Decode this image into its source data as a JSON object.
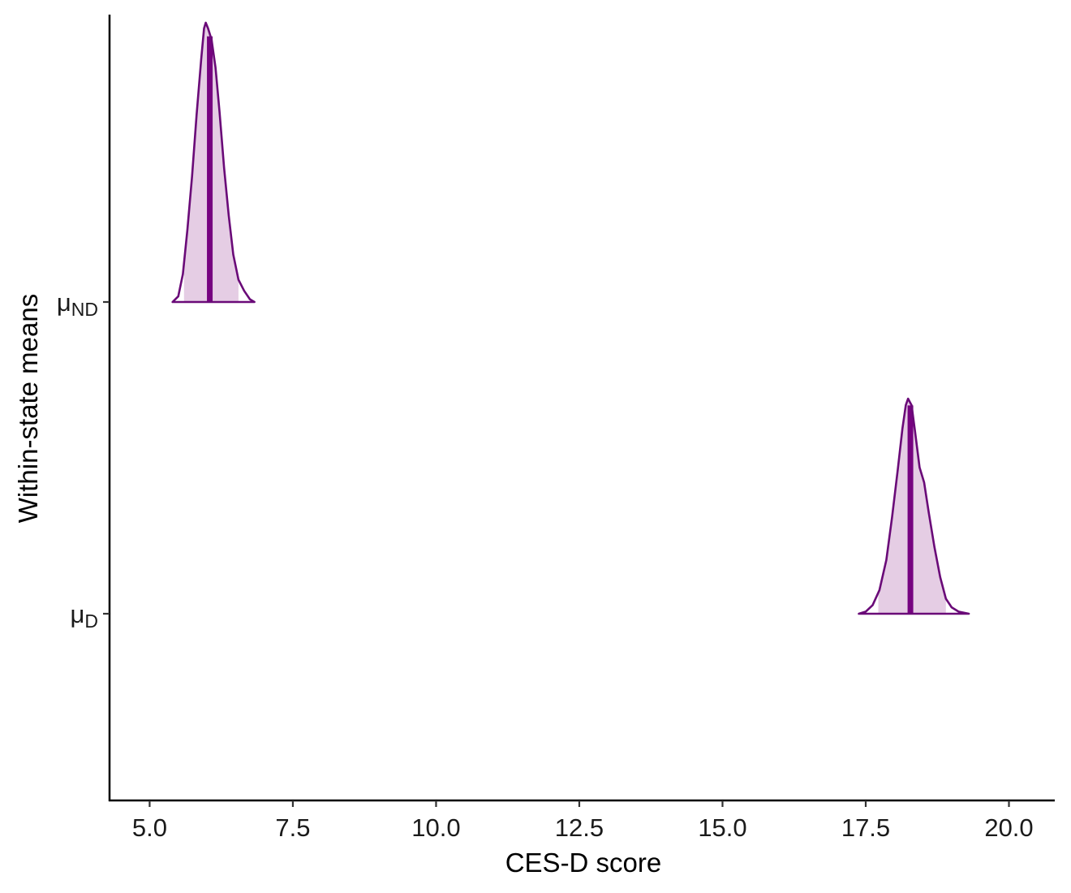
{
  "chart_data": {
    "type": "density",
    "xlabel": "CES-D score",
    "ylabel": "Within-state means",
    "xlim": [
      4.3,
      20.8
    ],
    "x_ticks": [
      5.0,
      7.5,
      10.0,
      12.5,
      15.0,
      17.5,
      20.0
    ],
    "x_tick_labels": [
      "5.0",
      "7.5",
      "10.0",
      "12.5",
      "15.0",
      "17.5",
      "20.0"
    ],
    "y_categories": [
      {
        "key": "mu_ND",
        "symbol": "μ",
        "subscript": "ND"
      },
      {
        "key": "mu_D",
        "symbol": "μ",
        "subscript": "D"
      }
    ],
    "grid": false,
    "colors": {
      "outline": "#6a0a78",
      "fill": "#e5cde4",
      "median": "#760380"
    },
    "series": [
      {
        "category": "mu_ND",
        "median": 6.05,
        "interval": [
          5.6,
          6.55
        ],
        "relative_height": 1.0,
        "density": [
          [
            5.4,
            0.0
          ],
          [
            5.5,
            0.02
          ],
          [
            5.58,
            0.1
          ],
          [
            5.66,
            0.26
          ],
          [
            5.74,
            0.45
          ],
          [
            5.82,
            0.67
          ],
          [
            5.9,
            0.87
          ],
          [
            5.95,
            0.98
          ],
          [
            5.98,
            1.0
          ],
          [
            6.02,
            0.98
          ],
          [
            6.08,
            0.94
          ],
          [
            6.15,
            0.84
          ],
          [
            6.22,
            0.68
          ],
          [
            6.3,
            0.48
          ],
          [
            6.38,
            0.31
          ],
          [
            6.46,
            0.17
          ],
          [
            6.55,
            0.08
          ],
          [
            6.65,
            0.04
          ],
          [
            6.75,
            0.01
          ],
          [
            6.83,
            0.0
          ]
        ]
      },
      {
        "category": "mu_D",
        "median": 18.28,
        "interval": [
          17.72,
          18.9
        ],
        "relative_height": 0.77,
        "density": [
          [
            17.38,
            0.0
          ],
          [
            17.5,
            0.01
          ],
          [
            17.62,
            0.04
          ],
          [
            17.74,
            0.11
          ],
          [
            17.86,
            0.25
          ],
          [
            17.96,
            0.45
          ],
          [
            18.06,
            0.67
          ],
          [
            18.14,
            0.86
          ],
          [
            18.2,
            0.97
          ],
          [
            18.24,
            1.0
          ],
          [
            18.3,
            0.97
          ],
          [
            18.36,
            0.85
          ],
          [
            18.44,
            0.68
          ],
          [
            18.52,
            0.61
          ],
          [
            18.6,
            0.47
          ],
          [
            18.7,
            0.31
          ],
          [
            18.8,
            0.17
          ],
          [
            18.9,
            0.07
          ],
          [
            19.0,
            0.03
          ],
          [
            19.12,
            0.01
          ],
          [
            19.3,
            0.0
          ]
        ]
      }
    ]
  }
}
